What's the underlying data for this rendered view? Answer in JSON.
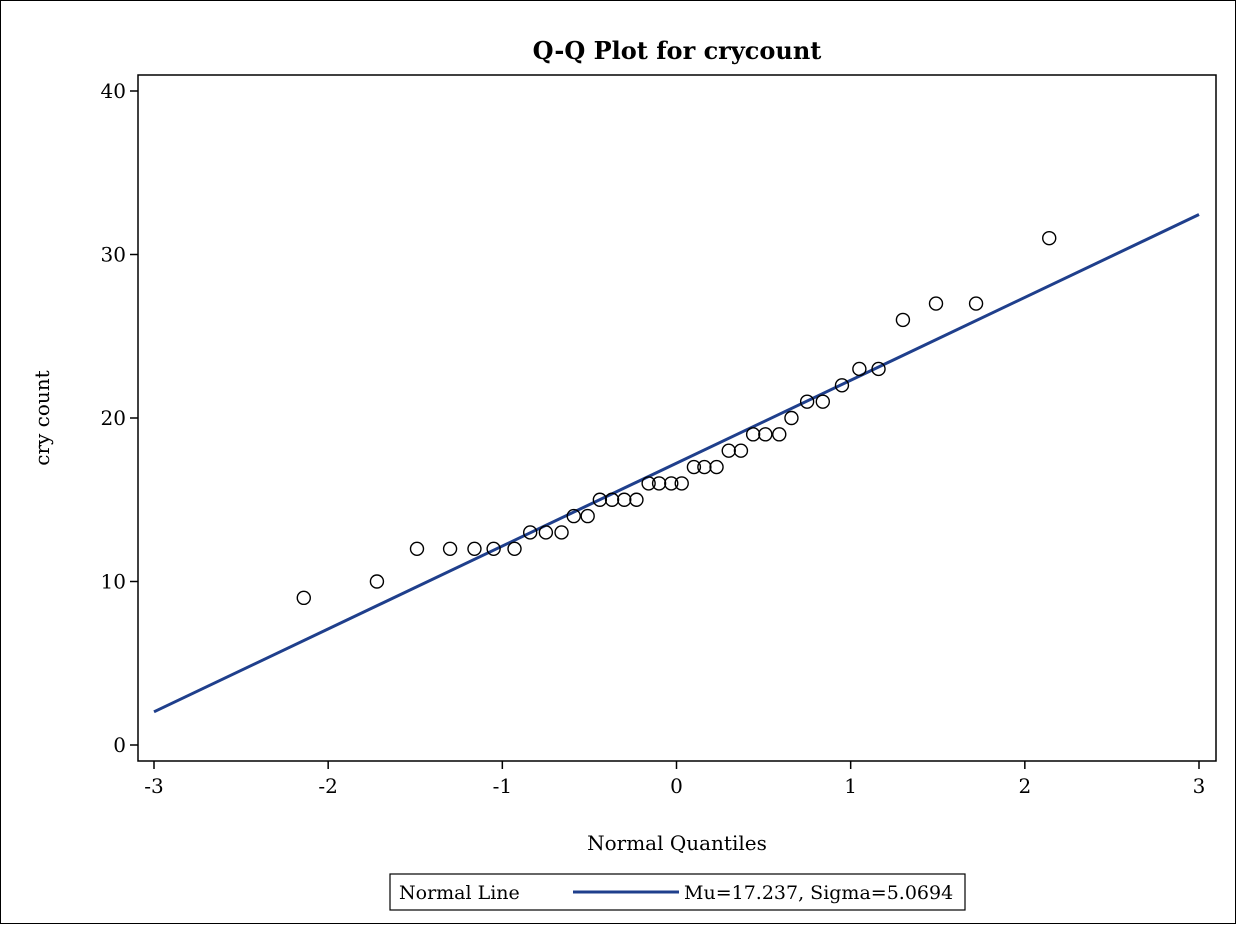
{
  "colors": {
    "line": "#1f3f8c",
    "marker_stroke": "#000000",
    "axis": "#000000",
    "background": "#ffffff"
  },
  "chart_data": {
    "type": "scatter",
    "title": "Q-Q Plot for crycount",
    "xlabel": "Normal Quantiles",
    "ylabel": "cry count",
    "xlim": [
      -3,
      3
    ],
    "ylim": [
      0,
      40
    ],
    "x_ticks": [
      -3,
      -2,
      -1,
      0,
      1,
      2,
      3
    ],
    "y_ticks": [
      0,
      10,
      20,
      30,
      40
    ],
    "grid": false,
    "marker": "open-circle",
    "legend": {
      "placement": "bottom-center",
      "label": "Normal Line",
      "entry": "Mu=17.237, Sigma=5.0694"
    },
    "reference_line": {
      "mu": 17.237,
      "sigma": 5.0694
    },
    "series": [
      {
        "x": [
          -2.14,
          -1.72,
          -1.49,
          -1.3,
          -1.16,
          -1.05,
          -0.93,
          -0.84,
          -0.75,
          -0.66,
          -0.59,
          -0.51,
          -0.44,
          -0.37,
          -0.3,
          -0.23,
          -0.16,
          -0.1,
          -0.03,
          0.03,
          0.1,
          0.16,
          0.23,
          0.3,
          0.37,
          0.44,
          0.51,
          0.59,
          0.66,
          0.75,
          0.84,
          0.95,
          1.05,
          1.16,
          1.3,
          1.49,
          1.72,
          2.14
        ],
        "y": [
          9,
          10,
          12,
          12,
          12,
          12,
          12,
          13,
          13,
          13,
          14,
          14,
          15,
          15,
          15,
          15,
          16,
          16,
          16,
          16,
          17,
          17,
          17,
          18,
          18,
          19,
          19,
          19,
          20,
          21,
          21,
          22,
          23,
          23,
          26,
          27,
          27,
          31
        ]
      }
    ]
  }
}
